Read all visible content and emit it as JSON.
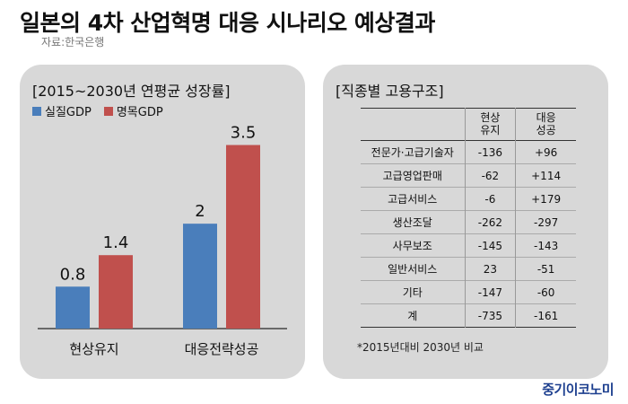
{
  "title": "일본의 4차 산업혁명 대응 시나리오 예상결과",
  "source": "자료:한국은행",
  "left_panel": {
    "title": "[2015~2030년 연평균 성장률]"
  },
  "right_panel": {
    "title": "[직종별 고용구조]",
    "col1_header": "",
    "col2_header": "현상\n유지",
    "col3_header": "대응\n성공",
    "note": "*2015년대비 2030년 비교"
  },
  "colors": {
    "real_gdp": "#4a7ebb",
    "nominal_gdp": "#c0504d",
    "panel_bg": "#d8d8d8"
  },
  "chart_data": [
    {
      "type": "bar",
      "title": "[2015~2030년 연평균 성장률]",
      "categories": [
        "현상유지",
        "대응전략성공"
      ],
      "series": [
        {
          "name": "실질GDP",
          "values": [
            0.8,
            2
          ]
        },
        {
          "name": "명목GDP",
          "values": [
            1.4,
            3.5
          ]
        }
      ],
      "value_labels": [
        [
          "0.8",
          "2"
        ],
        [
          "1.4",
          "3.5"
        ]
      ],
      "ylim": [
        0,
        3.8
      ],
      "grid": false,
      "legend": "top-left"
    },
    {
      "type": "table",
      "title": "[직종별 고용구조]",
      "columns": [
        "",
        "현상 유지",
        "대응 성공"
      ],
      "rows": [
        {
          "label": "전문가·고급기술자",
          "status_quo": "-136",
          "success": "+96"
        },
        {
          "label": "고급영업판매",
          "status_quo": "-62",
          "success": "+114"
        },
        {
          "label": "고급서비스",
          "status_quo": "-6",
          "success": "+179"
        },
        {
          "label": "생산조달",
          "status_quo": "-262",
          "success": "-297"
        },
        {
          "label": "사무보조",
          "status_quo": "-145",
          "success": "-143"
        },
        {
          "label": "일반서비스",
          "status_quo": "23",
          "success": "-51"
        },
        {
          "label": "기타",
          "status_quo": "-147",
          "success": "-60"
        },
        {
          "label": "계",
          "status_quo": "-735",
          "success": "-161"
        }
      ]
    }
  ],
  "logo": "중기이코노미"
}
